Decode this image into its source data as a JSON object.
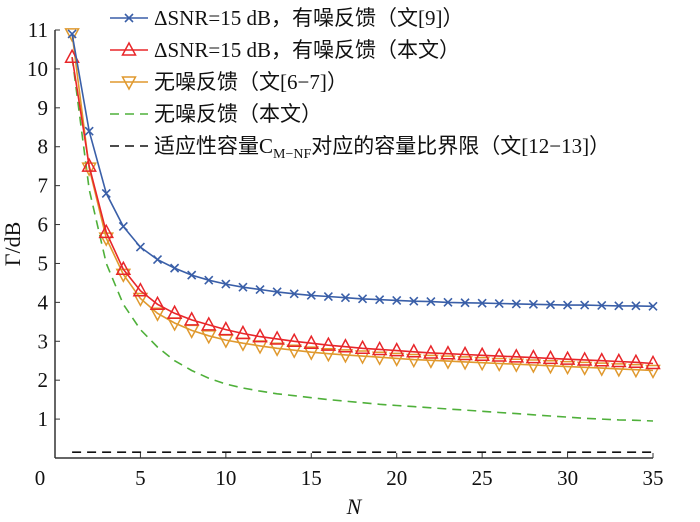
{
  "chart_data": {
    "type": "line",
    "title": "",
    "xlabel": "N",
    "ylabel": "Γ/dB",
    "xlim": [
      0,
      35
    ],
    "ylim": [
      0,
      11
    ],
    "xticks": [
      "0",
      "5",
      "10",
      "15",
      "20",
      "25",
      "30",
      "35"
    ],
    "yticks": [
      "1",
      "2",
      "3",
      "4",
      "5",
      "6",
      "7",
      "8",
      "9",
      "10",
      "11"
    ],
    "grid": false,
    "legend_position": "top-right",
    "x": [
      1,
      2,
      3,
      4,
      5,
      6,
      7,
      8,
      9,
      10,
      11,
      12,
      13,
      14,
      15,
      16,
      17,
      18,
      19,
      20,
      21,
      22,
      23,
      24,
      25,
      26,
      27,
      28,
      29,
      30,
      31,
      32,
      33,
      34,
      35
    ],
    "series": [
      {
        "name": "ΔSNR=15 dB，有噪反馈（文[9]）",
        "color": "#3a5fa8",
        "marker": "x",
        "dash": false,
        "values": [
          10.9,
          8.4,
          6.8,
          5.95,
          5.42,
          5.1,
          4.88,
          4.7,
          4.57,
          4.47,
          4.39,
          4.33,
          4.27,
          4.22,
          4.18,
          4.15,
          4.12,
          4.09,
          4.07,
          4.05,
          4.03,
          4.02,
          4.0,
          3.99,
          3.98,
          3.97,
          3.96,
          3.95,
          3.94,
          3.93,
          3.93,
          3.92,
          3.91,
          3.91,
          3.9
        ]
      },
      {
        "name": "ΔSNR=15 dB，有噪反馈（本文）",
        "color": "#e8262a",
        "marker": "triangle-up",
        "dash": false,
        "values": [
          10.3,
          7.5,
          5.8,
          4.85,
          4.3,
          3.95,
          3.72,
          3.55,
          3.42,
          3.3,
          3.2,
          3.12,
          3.06,
          3.0,
          2.95,
          2.9,
          2.86,
          2.82,
          2.79,
          2.76,
          2.73,
          2.7,
          2.68,
          2.66,
          2.64,
          2.62,
          2.6,
          2.58,
          2.56,
          2.54,
          2.52,
          2.5,
          2.48,
          2.46,
          2.43
        ]
      },
      {
        "name": "无噪反馈（文[6−7]）",
        "color": "#e0992e",
        "marker": "triangle-down",
        "dash": false,
        "values": [
          10.9,
          7.45,
          5.65,
          4.72,
          4.1,
          3.72,
          3.47,
          3.28,
          3.14,
          3.03,
          2.95,
          2.88,
          2.82,
          2.77,
          2.72,
          2.68,
          2.65,
          2.62,
          2.59,
          2.56,
          2.53,
          2.51,
          2.49,
          2.47,
          2.45,
          2.43,
          2.41,
          2.39,
          2.37,
          2.35,
          2.33,
          2.31,
          2.29,
          2.27,
          2.25
        ]
      },
      {
        "name": "无噪反馈（本文）",
        "color": "#4fb03a",
        "marker": "none",
        "dash": true,
        "values": [
          10.3,
          6.9,
          5.0,
          3.95,
          3.3,
          2.85,
          2.5,
          2.25,
          2.05,
          1.9,
          1.8,
          1.72,
          1.65,
          1.6,
          1.55,
          1.5,
          1.46,
          1.42,
          1.38,
          1.35,
          1.32,
          1.29,
          1.26,
          1.23,
          1.2,
          1.17,
          1.14,
          1.11,
          1.08,
          1.05,
          1.02,
          1.0,
          0.98,
          0.97,
          0.95
        ]
      },
      {
        "name": "适应性容量C",
        "name_sub": "M−NF",
        "name_tail": "对应的容量比界限（文[12−13]）",
        "color": "#111111",
        "marker": "none",
        "dash": true,
        "values": [
          0.15,
          0.15,
          0.15,
          0.15,
          0.15,
          0.15,
          0.15,
          0.15,
          0.15,
          0.15,
          0.15,
          0.15,
          0.15,
          0.15,
          0.15,
          0.15,
          0.15,
          0.15,
          0.15,
          0.15,
          0.15,
          0.15,
          0.15,
          0.15,
          0.15,
          0.15,
          0.15,
          0.15,
          0.15,
          0.15,
          0.15,
          0.15,
          0.15,
          0.15,
          0.15
        ]
      }
    ]
  }
}
